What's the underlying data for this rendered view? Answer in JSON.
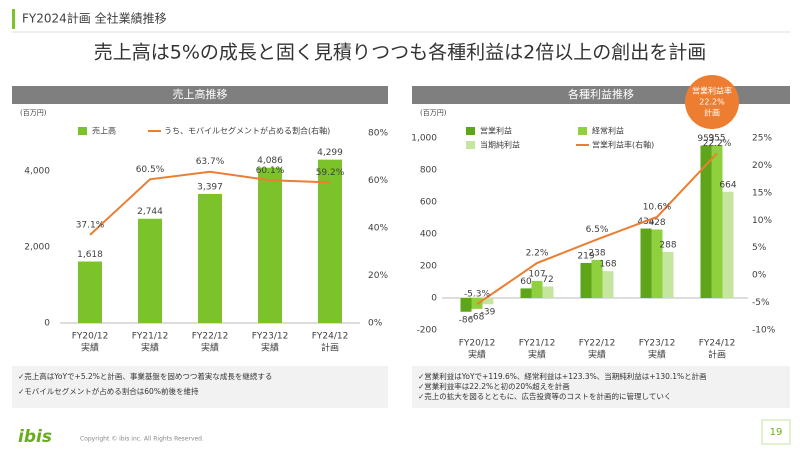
{
  "header": {
    "section": "FY2024計画 全社業績推移",
    "title": "売上高は5%の成長と固く見積りつつも各種利益は2倍以上の創出を計画"
  },
  "chart_data": [
    {
      "type": "combo",
      "title": "売上高推移",
      "y_unit": "(百万円)",
      "categories": [
        "FY20/12",
        "FY21/12",
        "FY22/12",
        "FY23/12",
        "FY24/12"
      ],
      "category_notes": [
        "実績",
        "実績",
        "実績",
        "実績",
        "計画"
      ],
      "ylim": [
        0,
        5000
      ],
      "yticks": [
        0,
        {
          "value": 2000,
          "label": "2,000"
        },
        {
          "value": 4000,
          "label": "4,000"
        }
      ],
      "y2lim": [
        0,
        80
      ],
      "y2ticks": [
        {
          "value": 0,
          "label": "0%"
        },
        {
          "value": 20,
          "label": "20%"
        },
        {
          "value": 40,
          "label": "40%"
        },
        {
          "value": 60,
          "label": "60%"
        },
        {
          "value": 80,
          "label": "80%"
        }
      ],
      "grid": false,
      "series": [
        {
          "name": "売上高",
          "type": "bar",
          "color": "#7cc22b",
          "values": [
            1618,
            2744,
            3397,
            4086,
            4299
          ],
          "value_labels": [
            "1,618",
            "2,744",
            "3,397",
            "4,086",
            "4,299"
          ]
        },
        {
          "name": "うち、モバイルセグメントが占める割合(右軸)",
          "type": "line",
          "axis": "y2",
          "color": "#ed7d31",
          "values": [
            37.1,
            60.5,
            63.7,
            60.1,
            59.2
          ],
          "value_labels": [
            "37.1%",
            "60.5%",
            "63.7%",
            "60.1%",
            "59.2%"
          ]
        }
      ]
    },
    {
      "type": "combo",
      "title": "各種利益推移",
      "y_unit": "(百万円)",
      "annotation": [
        "営業利益率",
        "22.2%",
        "計画"
      ],
      "categories": [
        "FY20/12",
        "FY21/12",
        "FY22/12",
        "FY23/12",
        "FY24/12"
      ],
      "category_notes": [
        "実績",
        "実績",
        "実績",
        "実績",
        "計画"
      ],
      "ylim": [
        -200,
        1000
      ],
      "yticks": [
        -200,
        0,
        200,
        400,
        600,
        800,
        {
          "value": 1000,
          "label": "1,000"
        }
      ],
      "y2lim": [
        -10,
        25
      ],
      "y2ticks": [
        {
          "value": -10,
          "label": "-10%"
        },
        {
          "value": -5,
          "label": "-5%"
        },
        {
          "value": 0,
          "label": "0%"
        },
        {
          "value": 5,
          "label": "5%"
        },
        {
          "value": 10,
          "label": "10%"
        },
        {
          "value": 15,
          "label": "15%"
        },
        {
          "value": 20,
          "label": "20%"
        },
        {
          "value": 25,
          "label": "25%"
        }
      ],
      "grid": false,
      "series": [
        {
          "name": "営業利益",
          "type": "bar",
          "color": "#5ea51a",
          "values": [
            -86,
            60,
            219,
            434,
            953
          ]
        },
        {
          "name": "経常利益",
          "type": "bar",
          "color": "#8fd03e",
          "values": [
            -68,
            107,
            238,
            428,
            955
          ]
        },
        {
          "name": "当期純利益",
          "type": "bar",
          "color": "#c6e6a0",
          "values": [
            -39,
            72,
            168,
            288,
            664
          ]
        },
        {
          "name": "営業利益率(右軸)",
          "type": "line",
          "axis": "y2",
          "color": "#ed7d31",
          "values": [
            -5.3,
            2.2,
            6.5,
            10.6,
            22.2
          ],
          "value_labels": [
            "-5.3%",
            "2.2%",
            "6.5%",
            "10.6%",
            "22.2%"
          ]
        }
      ]
    }
  ],
  "notes": [
    [
      "✓売上高はYoYで+5.2%と計画、事業基盤を固めつつ着実な成長を継続する",
      "✓モバイルセグメントが占める割合は60%前後を維持"
    ],
    [
      "✓営業利益はYoYで+119.6%、経常利益は+123.3%、当期純利益は+130.1%と計画",
      "✓営業利益率は22.2%と初の20%超えを計画",
      "✓売上の拡大を図るとともに、広告投資等のコストを計画的に管理していく"
    ]
  ],
  "footer": {
    "logo": "ibis",
    "copyright": "Copyright © ibis inc. All Rights Reserved.",
    "page": "19"
  }
}
